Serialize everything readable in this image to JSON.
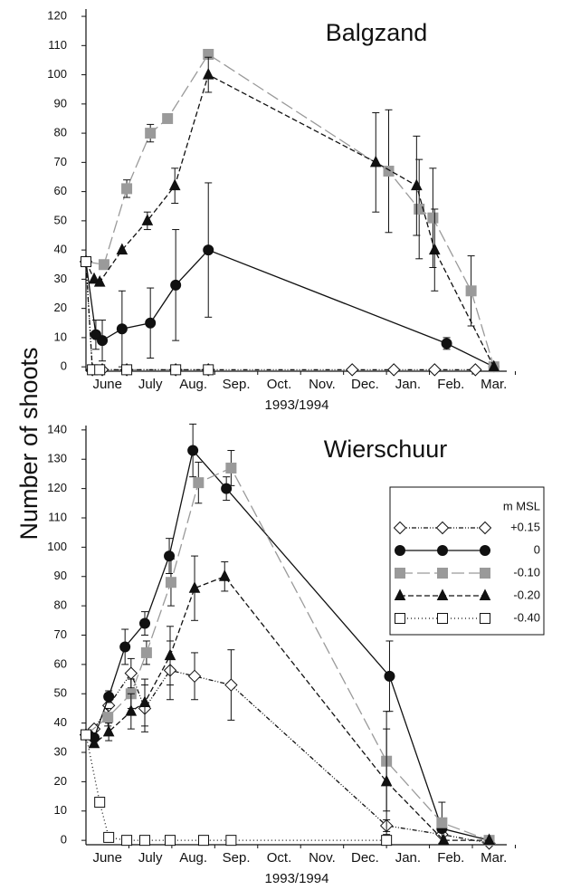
{
  "chart_data": [
    {
      "type": "line",
      "title": "Balgzand",
      "ylabel": "Number of shoots",
      "xlabel": "1993/1994",
      "xlim": [
        6,
        15.8
      ],
      "ylim": [
        -1.5,
        122.5
      ],
      "yticks": [
        0,
        10,
        20,
        30,
        40,
        50,
        60,
        70,
        80,
        90,
        100,
        110,
        120
      ],
      "xticks": [
        {
          "value": 6.5,
          "label": "June"
        },
        {
          "value": 7.5,
          "label": "July"
        },
        {
          "value": 8.5,
          "label": "Aug."
        },
        {
          "value": 9.5,
          "label": "Sep."
        },
        {
          "value": 10.5,
          "label": "Oct."
        },
        {
          "value": 11.5,
          "label": "Nov."
        },
        {
          "value": 12.5,
          "label": "Dec."
        },
        {
          "value": 13.5,
          "label": "Jan."
        },
        {
          "value": 14.5,
          "label": "Feb."
        },
        {
          "value": 15.5,
          "label": "Mar."
        }
      ],
      "series": [
        {
          "name": "+0.15",
          "color": "#111111",
          "dash": "5,2,1,2,1,2",
          "marker": "diamond",
          "fill": "#ffffff",
          "x": [
            6.0,
            6.15,
            6.38,
            6.95,
            8.09,
            8.85,
            12.2,
            13.17,
            14.12,
            15.07
          ],
          "values": [
            36,
            -1,
            -1,
            -1,
            -1,
            -1,
            -1,
            -1,
            -1,
            -1
          ]
        },
        {
          "name": "0",
          "color": "#111111",
          "dash": "none",
          "marker": "circle",
          "fill": "#111111",
          "x": [
            6.0,
            6.23,
            6.38,
            6.84,
            7.5,
            8.09,
            8.85,
            14.4,
            15.5
          ],
          "values": [
            36,
            11,
            9,
            13,
            15,
            28,
            40,
            8,
            0
          ],
          "errors": [
            null,
            5,
            7,
            13,
            12,
            19,
            23,
            2,
            null
          ]
        },
        {
          "name": "-0.10",
          "color": "#9a9a9a",
          "dash": "14,5",
          "marker": "square",
          "fill": "#9a9a9a",
          "x": [
            6.0,
            6.42,
            6.95,
            7.5,
            7.9,
            8.85,
            13.05,
            13.76,
            14.08,
            14.97,
            15.5
          ],
          "values": [
            36,
            35,
            61,
            80,
            85,
            107,
            67,
            54,
            51,
            26,
            0
          ],
          "errors": [
            null,
            null,
            3,
            3,
            null,
            null,
            21,
            17,
            17,
            12,
            null
          ]
        },
        {
          "name": "-0.20",
          "color": "#111111",
          "dash": "6,3",
          "marker": "triangle",
          "fill": "#111111",
          "x": [
            6.0,
            6.19,
            6.32,
            6.84,
            7.43,
            8.07,
            8.85,
            12.75,
            13.7,
            14.12,
            15.5
          ],
          "values": [
            36,
            30,
            29,
            40,
            50,
            62,
            100,
            70,
            62,
            40,
            0
          ],
          "errors": [
            null,
            null,
            null,
            null,
            3,
            6,
            6,
            17,
            17,
            14,
            null
          ]
        },
        {
          "name": "-0.40",
          "color": "#111111",
          "dash": "1,3",
          "marker": "square",
          "fill": "#ffffff",
          "x": [
            6.0,
            6.15,
            6.32,
            6.95,
            8.09,
            8.85
          ],
          "values": [
            36,
            -1,
            -1,
            -1,
            -1,
            -1
          ]
        }
      ]
    },
    {
      "type": "line",
      "title": "Wierschuur",
      "xlabel": "1993/1994",
      "legend_title": "m MSL",
      "legend": "upper right",
      "xlim": [
        6,
        15.8
      ],
      "ylim": [
        -1.5,
        141.5
      ],
      "yticks": [
        0,
        10,
        20,
        30,
        40,
        50,
        60,
        70,
        80,
        90,
        100,
        110,
        120,
        130,
        140
      ],
      "xticks": [
        {
          "value": 6.5,
          "label": "June"
        },
        {
          "value": 7.5,
          "label": "July"
        },
        {
          "value": 8.5,
          "label": "Aug."
        },
        {
          "value": 9.5,
          "label": "Sep."
        },
        {
          "value": 10.5,
          "label": "Oct."
        },
        {
          "value": 11.5,
          "label": "Nov."
        },
        {
          "value": 12.5,
          "label": "Dec."
        },
        {
          "value": 13.5,
          "label": "Jan."
        },
        {
          "value": 14.5,
          "label": "Feb."
        },
        {
          "value": 15.5,
          "label": "Mar."
        }
      ],
      "series": [
        {
          "name": "+0.15",
          "color": "#111111",
          "dash": "5,2,1,2,1,2",
          "marker": "diamond",
          "fill": "#ffffff",
          "x": [
            6.0,
            6.19,
            6.53,
            7.05,
            7.37,
            7.96,
            8.53,
            9.38,
            13.0,
            14.29,
            15.39
          ],
          "values": [
            36,
            38,
            46,
            57,
            45,
            58,
            56,
            53,
            5,
            2,
            -1
          ],
          "errors": [
            null,
            null,
            null,
            5,
            8,
            10,
            8,
            12,
            2,
            null,
            null
          ]
        },
        {
          "name": "0",
          "color": "#111111",
          "dash": "none",
          "marker": "circle",
          "fill": "#111111",
          "x": [
            6.0,
            6.06,
            6.19,
            6.53,
            6.91,
            7.37,
            7.94,
            8.49,
            9.27,
            13.07,
            14.29,
            15.39
          ],
          "values": [
            36,
            36,
            35,
            49,
            66,
            74,
            97,
            133,
            120,
            56,
            4,
            0
          ],
          "errors": [
            null,
            null,
            null,
            2,
            6,
            4,
            6,
            9,
            4,
            12,
            null,
            null
          ]
        },
        {
          "name": "-0.10",
          "color": "#9a9a9a",
          "dash": "14,5",
          "marker": "square",
          "fill": "#9a9a9a",
          "x": [
            6.0,
            6.51,
            7.05,
            7.41,
            7.98,
            8.62,
            9.38,
            13.0,
            14.29,
            15.39
          ],
          "values": [
            36,
            42,
            50,
            64,
            88,
            122,
            127,
            27,
            6,
            0
          ],
          "errors": [
            null,
            3,
            5,
            4,
            8,
            7,
            6,
            17,
            7,
            null
          ]
        },
        {
          "name": "-0.20",
          "color": "#111111",
          "dash": "6,3",
          "marker": "triangle",
          "fill": "#111111",
          "x": [
            6.0,
            6.19,
            6.53,
            7.05,
            7.37,
            7.96,
            8.53,
            9.23,
            13.0,
            14.33,
            15.39
          ],
          "values": [
            36,
            33,
            37,
            44,
            47,
            63,
            86,
            90,
            20,
            0,
            0
          ],
          "errors": [
            null,
            null,
            3,
            6,
            8,
            10,
            11,
            5,
            18,
            null,
            null
          ]
        },
        {
          "name": "-0.40",
          "color": "#111111",
          "dash": "1,3",
          "marker": "square",
          "fill": "#ffffff",
          "x": [
            6.0,
            6.32,
            6.53,
            6.95,
            7.37,
            7.96,
            8.74,
            9.38,
            13.0
          ],
          "values": [
            36,
            13,
            1,
            0,
            0,
            0,
            0,
            0,
            0
          ]
        }
      ]
    }
  ]
}
